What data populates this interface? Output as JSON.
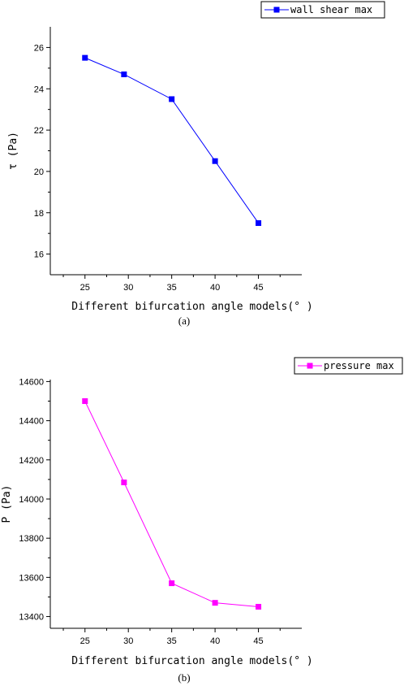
{
  "chart_data": [
    {
      "type": "line",
      "caption": "(a)",
      "xlabel": "Different bifurcation angle models(° )",
      "ylabel": "τ (Pa)",
      "xlim": [
        21,
        50
      ],
      "ylim": [
        15,
        27
      ],
      "xticks": [
        25,
        30,
        35,
        40,
        45
      ],
      "yticks": [
        16,
        18,
        20,
        22,
        24,
        26
      ],
      "legend_position": "top-right",
      "grid": false,
      "series": [
        {
          "name": "wall shear max",
          "color": "#0000ff",
          "x": [
            25,
            29.5,
            35,
            40,
            45
          ],
          "y": [
            25.5,
            24.7,
            23.5,
            20.5,
            17.5
          ]
        }
      ]
    },
    {
      "type": "line",
      "caption": "(b)",
      "xlabel": "Different bifurcation angle models(° )",
      "ylabel": "P (Pa)",
      "xlim": [
        21,
        50
      ],
      "ylim": [
        13340,
        14610
      ],
      "xticks": [
        25,
        30,
        35,
        40,
        45
      ],
      "yticks": [
        13400,
        13600,
        13800,
        14000,
        14200,
        14400,
        14600
      ],
      "legend_position": "top-right",
      "grid": false,
      "series": [
        {
          "name": "pressure max",
          "color": "#ff00ff",
          "x": [
            25,
            29.5,
            35,
            40,
            45
          ],
          "y": [
            14500,
            14085,
            13570,
            13470,
            13450
          ]
        }
      ]
    }
  ]
}
